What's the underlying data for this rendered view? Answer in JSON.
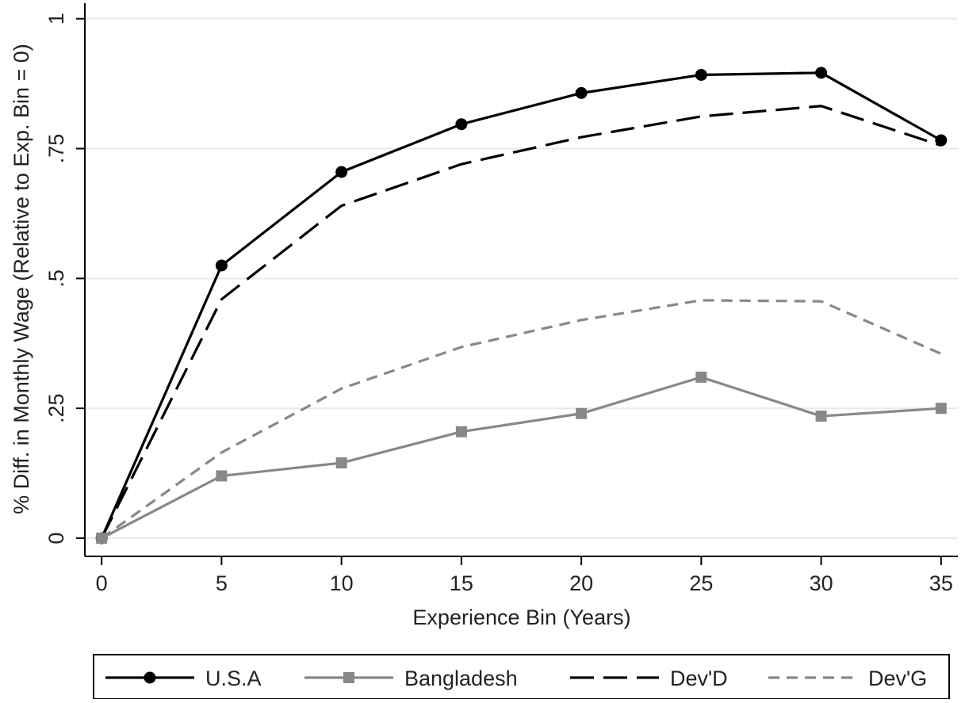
{
  "chart_data": {
    "type": "line",
    "title": "",
    "xlabel": "Experience Bin (Years)",
    "ylabel": "% Diff. in Monthly Wage (Relative to Exp. Bin = 0)",
    "x": [
      0,
      5,
      10,
      15,
      20,
      25,
      30,
      35
    ],
    "x_tick_labels": [
      "0",
      "5",
      "10",
      "15",
      "20",
      "25",
      "30",
      "35"
    ],
    "y_ticks": [
      0,
      0.25,
      0.5,
      0.75,
      1
    ],
    "y_tick_labels": [
      "0",
      ".25",
      ".5",
      ".75",
      "1"
    ],
    "xlim": [
      -0.7,
      35.7
    ],
    "ylim": [
      -0.035,
      1.03
    ],
    "grid": "horizontal",
    "legend_position": "bottom",
    "series": [
      {
        "name": "U.S.A",
        "color": "#000000",
        "style": "solid",
        "marker": "circle",
        "values": [
          0,
          0.525,
          0.705,
          0.797,
          0.857,
          0.892,
          0.896,
          0.766
        ]
      },
      {
        "name": "Bangladesh",
        "color": "#888888",
        "style": "solid",
        "marker": "square",
        "values": [
          0,
          0.12,
          0.145,
          0.205,
          0.24,
          0.31,
          0.235,
          0.25
        ]
      },
      {
        "name": "Dev'D",
        "color": "#000000",
        "style": "long-dash",
        "marker": "none",
        "values": [
          0,
          0.46,
          0.64,
          0.72,
          0.772,
          0.812,
          0.832,
          0.756
        ]
      },
      {
        "name": "Dev'G",
        "color": "#888888",
        "style": "short-dash",
        "marker": "none",
        "values": [
          0,
          0.165,
          0.288,
          0.368,
          0.42,
          0.458,
          0.456,
          0.355
        ]
      }
    ]
  }
}
